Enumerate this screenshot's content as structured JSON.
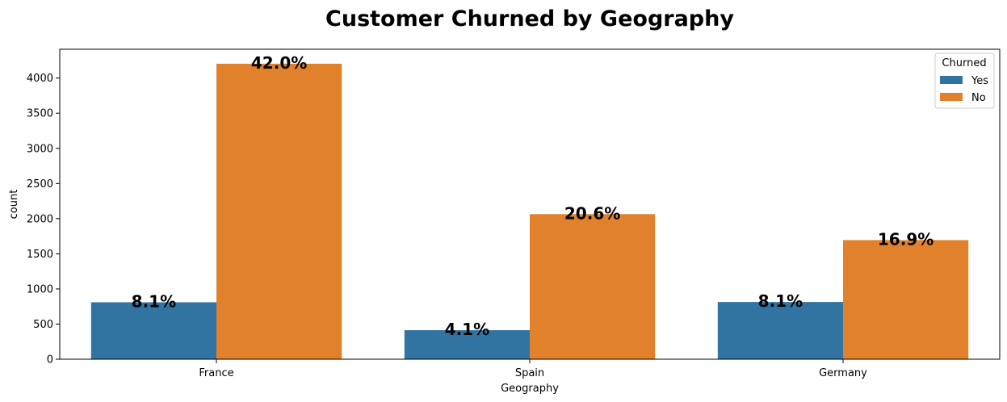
{
  "chart_data": {
    "type": "bar",
    "title": "Customer Churned by Geography",
    "xlabel": "Geography",
    "ylabel": "count",
    "categories": [
      "France",
      "Spain",
      "Germany"
    ],
    "series": [
      {
        "name": "Yes",
        "color": "#3274a1",
        "values": [
          810,
          413,
          814
        ],
        "labels": [
          "8.1%",
          "4.1%",
          "8.1%"
        ]
      },
      {
        "name": "No",
        "color": "#e1812c",
        "values": [
          4204,
          2064,
          1695
        ],
        "labels": [
          "42.0%",
          "20.6%",
          "16.9%"
        ]
      }
    ],
    "ylim": [
      0,
      4410
    ],
    "yticks": [
      0,
      500,
      1000,
      1500,
      2000,
      2500,
      3000,
      3500,
      4000
    ],
    "grid": false,
    "legend": {
      "title": "Churned",
      "position": "top-right"
    }
  }
}
